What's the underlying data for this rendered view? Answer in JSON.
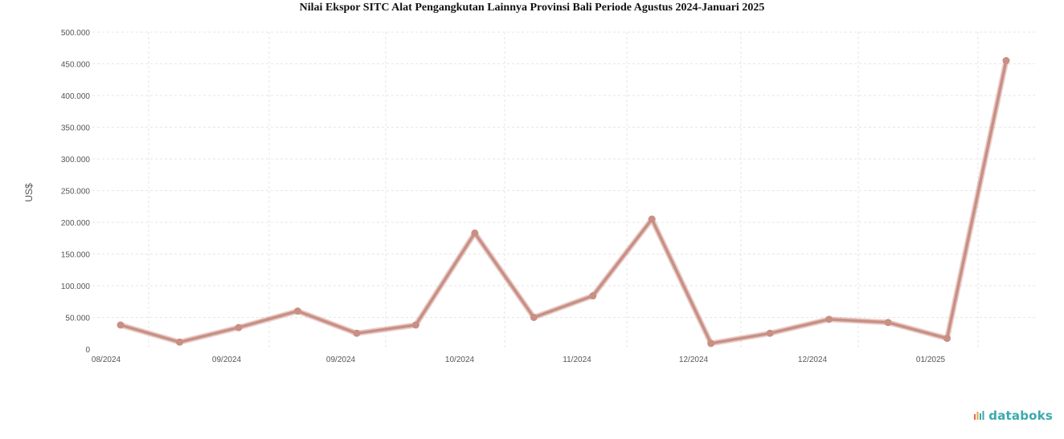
{
  "chart_data": {
    "type": "line",
    "title": "Nilai Ekspor SITC Alat Pengangkutan Lainnya Provinsi Bali Periode Agustus 2024-Januari 2025",
    "ylabel": "US$",
    "xlabel": "",
    "ylim": [
      0,
      500000
    ],
    "yticks": [
      0,
      50000,
      100000,
      150000,
      200000,
      250000,
      300000,
      350000,
      400000,
      450000,
      500000
    ],
    "ytick_labels": [
      "0",
      "50.000",
      "100.000",
      "150.000",
      "200.000",
      "250.000",
      "300.000",
      "350.000",
      "400.000",
      "450.000",
      "500.000"
    ],
    "x_tick_labels": [
      "08/2024",
      "09/2024",
      "09/2024",
      "10/2024",
      "11/2024",
      "12/2024",
      "12/2024",
      "01/2025"
    ],
    "series": [
      {
        "color": "#c98f84",
        "values": [
          38000,
          11000,
          34000,
          60000,
          25000,
          38000,
          183000,
          50000,
          84000,
          205000,
          9000,
          25000,
          47000,
          42000,
          17000,
          455000
        ]
      }
    ],
    "grid": true,
    "legend": "none"
  },
  "watermark": {
    "text": "databoks",
    "icon": "databoks-logo-icon",
    "color": "#3aa9ad"
  }
}
